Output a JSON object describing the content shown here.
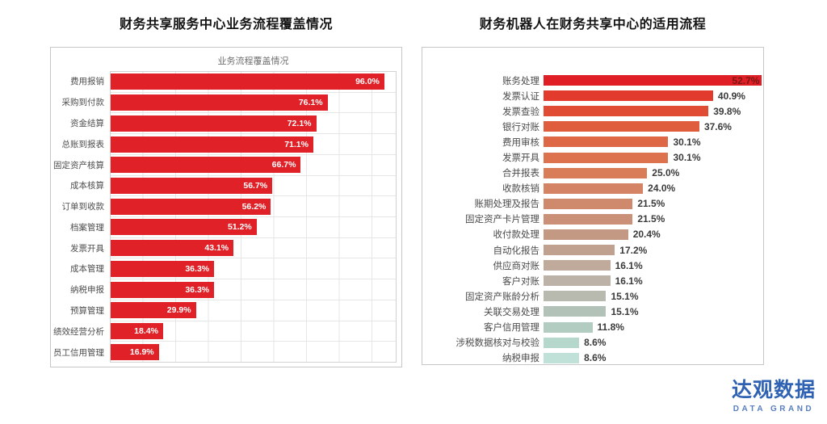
{
  "logo": {
    "cn": "达观数据",
    "en": "DATA GRAND",
    "color": "#2f62b3",
    "en_color": "#5a7fc0"
  },
  "chart_data": [
    {
      "type": "bar",
      "orientation": "horizontal",
      "title": "财务共享服务中心业务流程覆盖情况",
      "inner_title": "业务流程覆盖情况",
      "categories": [
        "费用报销",
        "采购到付款",
        "资金结算",
        "总账到报表",
        "固定资产核算",
        "成本核算",
        "订单到收款",
        "档案管理",
        "发票开具",
        "成本管理",
        "纳税申报",
        "预算管理",
        "绩效经营分析",
        "员工信用管理"
      ],
      "values": [
        96.0,
        76.1,
        72.1,
        71.1,
        66.7,
        56.7,
        56.2,
        51.2,
        43.1,
        36.3,
        36.3,
        29.9,
        18.4,
        16.9
      ],
      "value_labels": [
        "96.0%",
        "76.1%",
        "72.1%",
        "71.1%",
        "66.7%",
        "56.7%",
        "56.2%",
        "51.2%",
        "43.1%",
        "36.3%",
        "36.3%",
        "29.9%",
        "18.4%",
        "16.9%"
      ],
      "bar_color": "#e02127",
      "xlim": [
        0,
        100
      ],
      "grid": true,
      "legend": false
    },
    {
      "type": "bar",
      "orientation": "horizontal",
      "title": "财务机器人在财务共享中心的适用流程",
      "categories": [
        "账务处理",
        "发票认证",
        "发票查验",
        "银行对账",
        "费用审核",
        "发票开具",
        "合并报表",
        "收款核销",
        "账期处理及报告",
        "固定资产卡片管理",
        "收付款处理",
        "自动化报告",
        "供应商对账",
        "客户对账",
        "固定资产账龄分析",
        "关联交易处理",
        "客户信用管理",
        "涉税数据核对与校验",
        "纳税申报"
      ],
      "values": [
        52.7,
        40.9,
        39.8,
        37.6,
        30.1,
        30.1,
        25.0,
        24.0,
        21.5,
        21.5,
        20.4,
        17.2,
        16.1,
        16.1,
        15.1,
        15.1,
        11.8,
        8.6,
        8.6
      ],
      "value_labels": [
        "52.7%",
        "40.9%",
        "39.8%",
        "37.6%",
        "30.1%",
        "30.1%",
        "25.0%",
        "24.0%",
        "21.5%",
        "21.5%",
        "20.4%",
        "17.2%",
        "16.1%",
        "16.1%",
        "15.1%",
        "15.1%",
        "11.8%",
        "8.6%",
        "8.6%"
      ],
      "bar_colors": [
        "#df1f25",
        "#e23a2d",
        "#e04b33",
        "#df5c3c",
        "#de6845",
        "#dc724e",
        "#d97c58",
        "#d48465",
        "#cf8a6e",
        "#ca9078",
        "#c49983",
        "#c0a18f",
        "#bfaa9b",
        "#bcb2a7",
        "#b8bab0",
        "#b3c2b8",
        "#b2ccc1",
        "#b5d7cc",
        "#bfe1d8"
      ],
      "value_label_inside": [
        true,
        false,
        false,
        false,
        false,
        false,
        false,
        false,
        false,
        false,
        false,
        false,
        false,
        false,
        false,
        false,
        false,
        false,
        false
      ],
      "inside_label_color": "#7c1714",
      "xlim": [
        0,
        53
      ],
      "grid": false,
      "legend": false
    }
  ]
}
